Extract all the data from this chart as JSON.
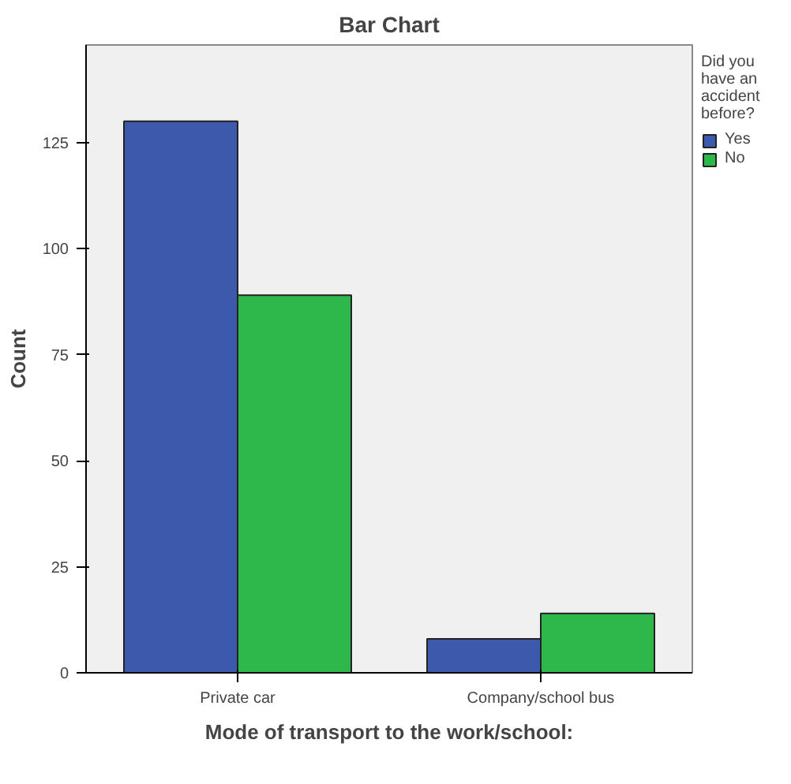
{
  "chart_data": {
    "type": "bar",
    "title": "Bar Chart",
    "xlabel": "Mode of transport to the work/school:",
    "ylabel": "Count",
    "legend_title": "Did you have an accident before?",
    "categories": [
      "Private car",
      "Company/school bus"
    ],
    "series": [
      {
        "name": "Yes",
        "color": "#3d59ab",
        "values": [
          130,
          8
        ]
      },
      {
        "name": "No",
        "color": "#2eb84b",
        "values": [
          89,
          14
        ]
      }
    ],
    "ylim": [
      0,
      148
    ],
    "yticks": [
      0,
      25,
      50,
      75,
      100,
      125
    ],
    "grid": false,
    "legend": "right"
  }
}
